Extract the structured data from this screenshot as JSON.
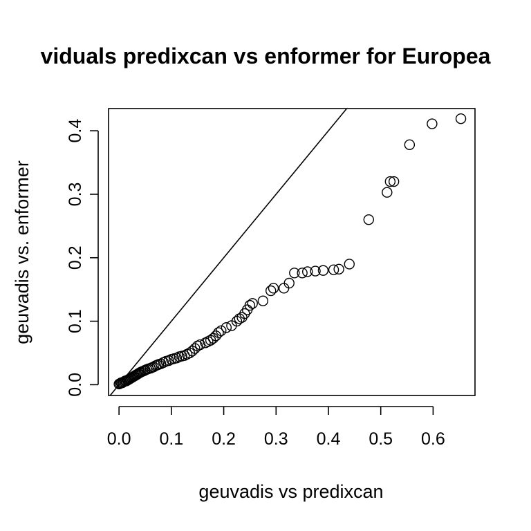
{
  "chart_data": {
    "type": "scatter",
    "title": "viduals predixcan vs enformer for Europea",
    "xlabel": "geuvadis vs predixcan",
    "ylabel": "geuvadis vs. enformer",
    "xlim": [
      -0.02,
      0.68
    ],
    "ylim": [
      -0.017,
      0.435
    ],
    "x_ticks": [
      0.0,
      0.1,
      0.2,
      0.3,
      0.4,
      0.5,
      0.6
    ],
    "x_tick_labels": [
      "0.0",
      "0.1",
      "0.2",
      "0.3",
      "0.4",
      "0.5",
      "0.6"
    ],
    "y_ticks": [
      0.0,
      0.1,
      0.2,
      0.3,
      0.4
    ],
    "y_tick_labels": [
      "0.0",
      "0.1",
      "0.2",
      "0.3",
      "0.4"
    ],
    "reference_line": {
      "slope": 1,
      "intercept": 0
    },
    "points": [
      [
        0.0,
        0.001
      ],
      [
        0.002,
        0.002
      ],
      [
        0.004,
        0.003
      ],
      [
        0.006,
        0.003
      ],
      [
        0.008,
        0.004
      ],
      [
        0.01,
        0.005
      ],
      [
        0.012,
        0.006
      ],
      [
        0.014,
        0.006
      ],
      [
        0.016,
        0.007
      ],
      [
        0.018,
        0.008
      ],
      [
        0.02,
        0.009
      ],
      [
        0.022,
        0.01
      ],
      [
        0.024,
        0.011
      ],
      [
        0.026,
        0.012
      ],
      [
        0.028,
        0.013
      ],
      [
        0.03,
        0.014
      ],
      [
        0.032,
        0.015
      ],
      [
        0.034,
        0.016
      ],
      [
        0.036,
        0.017
      ],
      [
        0.038,
        0.018
      ],
      [
        0.04,
        0.019
      ],
      [
        0.042,
        0.02
      ],
      [
        0.045,
        0.021
      ],
      [
        0.048,
        0.022
      ],
      [
        0.05,
        0.023
      ],
      [
        0.053,
        0.024
      ],
      [
        0.056,
        0.025
      ],
      [
        0.06,
        0.026
      ],
      [
        0.063,
        0.027
      ],
      [
        0.066,
        0.028
      ],
      [
        0.07,
        0.03
      ],
      [
        0.073,
        0.031
      ],
      [
        0.076,
        0.032
      ],
      [
        0.08,
        0.033
      ],
      [
        0.085,
        0.035
      ],
      [
        0.09,
        0.037
      ],
      [
        0.095,
        0.038
      ],
      [
        0.1,
        0.04
      ],
      [
        0.105,
        0.041
      ],
      [
        0.11,
        0.042
      ],
      [
        0.115,
        0.044
      ],
      [
        0.12,
        0.045
      ],
      [
        0.125,
        0.046
      ],
      [
        0.13,
        0.048
      ],
      [
        0.135,
        0.05
      ],
      [
        0.14,
        0.053
      ],
      [
        0.145,
        0.057
      ],
      [
        0.15,
        0.061
      ],
      [
        0.155,
        0.063
      ],
      [
        0.165,
        0.066
      ],
      [
        0.17,
        0.068
      ],
      [
        0.175,
        0.07
      ],
      [
        0.18,
        0.073
      ],
      [
        0.185,
        0.077
      ],
      [
        0.19,
        0.082
      ],
      [
        0.195,
        0.085
      ],
      [
        0.205,
        0.09
      ],
      [
        0.215,
        0.093
      ],
      [
        0.225,
        0.1
      ],
      [
        0.23,
        0.104
      ],
      [
        0.235,
        0.106
      ],
      [
        0.24,
        0.112
      ],
      [
        0.245,
        0.118
      ],
      [
        0.25,
        0.125
      ],
      [
        0.255,
        0.128
      ],
      [
        0.275,
        0.132
      ],
      [
        0.29,
        0.148
      ],
      [
        0.295,
        0.152
      ],
      [
        0.315,
        0.152
      ],
      [
        0.325,
        0.16
      ],
      [
        0.335,
        0.176
      ],
      [
        0.35,
        0.176
      ],
      [
        0.36,
        0.178
      ],
      [
        0.375,
        0.179
      ],
      [
        0.39,
        0.18
      ],
      [
        0.41,
        0.181
      ],
      [
        0.42,
        0.182
      ],
      [
        0.44,
        0.19
      ],
      [
        0.477,
        0.26
      ],
      [
        0.512,
        0.303
      ],
      [
        0.518,
        0.32
      ],
      [
        0.525,
        0.32
      ],
      [
        0.555,
        0.378
      ],
      [
        0.598,
        0.411
      ],
      [
        0.653,
        0.419
      ]
    ]
  }
}
